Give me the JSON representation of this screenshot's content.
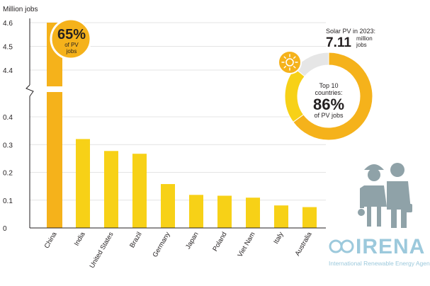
{
  "chart_data": {
    "type": "bar",
    "ylabel": "Million jobs",
    "categories": [
      "China",
      "India",
      "United States",
      "Brazil",
      "Germany",
      "Japan",
      "Poland",
      "Viet Nam",
      "Italy",
      "Australia"
    ],
    "values": [
      4.6,
      0.32,
      0.277,
      0.267,
      0.158,
      0.119,
      0.116,
      0.109,
      0.081,
      0.075
    ],
    "yticks_lower": [
      "0",
      "0.1",
      "0.2",
      "0.3",
      "0.4"
    ],
    "yticks_upper": [
      "4.4",
      "4.5",
      "4.6"
    ],
    "axis_break": true,
    "ylim_lower": [
      0,
      0.4
    ],
    "ylim_upper": [
      4.4,
      4.6
    ],
    "colors": {
      "china": "#f5b21b",
      "others": "#f7d117",
      "axis": "#231f20",
      "grid": "#dcdcdc"
    },
    "china_badge": {
      "value": "65%",
      "line1": "of PV",
      "line2": "jobs"
    },
    "donut": {
      "header": "Solar PV in 2023:",
      "total": "7.11",
      "total_unit_1": "million",
      "total_unit_2": "jobs",
      "center_line1": "Top 10",
      "center_line2": "countries:",
      "center_value": "86%",
      "center_line3": "of PV jobs",
      "share_top10": 0.86,
      "segment_shares": [
        0.65,
        0.21,
        0.14
      ],
      "segment_colors": [
        "#f5b21b",
        "#f7d117",
        "#e6e6e6"
      ]
    }
  },
  "icons": [
    "sun-icon",
    "female-worker-icon",
    "male-worker-icon",
    "irena-logo"
  ],
  "branding": {
    "name": "IRENA",
    "subtitle": "International Renewable Energy Agency",
    "color": "#9cc9dc"
  }
}
